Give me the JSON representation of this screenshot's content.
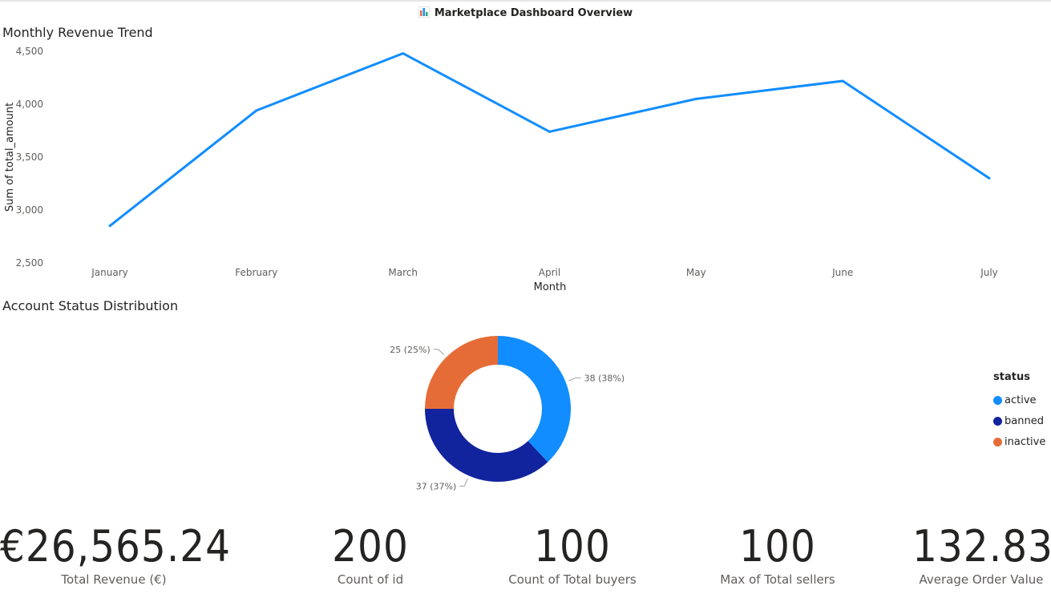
{
  "page": {
    "title": "Marketplace Dashboard Overview",
    "title_icon": "bar-chart-icon"
  },
  "colors": {
    "line": "#118DFF",
    "active": "#118DFF",
    "banned": "#12239E",
    "inactive": "#E66C37"
  },
  "chart_data": [
    {
      "type": "line",
      "title": "Monthly Revenue Trend",
      "xlabel": "Month",
      "ylabel": "Sum of total_amount",
      "categories": [
        "January",
        "February",
        "March",
        "April",
        "May",
        "June",
        "July"
      ],
      "values": [
        2850,
        3940,
        4480,
        3740,
        4050,
        4220,
        3300
      ],
      "ylim": [
        2500,
        4500
      ],
      "yticks": [
        2500,
        3000,
        3500,
        4000,
        4500
      ],
      "ytick_labels": [
        "2,500",
        "3,000",
        "3,500",
        "4,000",
        "4,500"
      ],
      "grid": false,
      "legend": "none"
    },
    {
      "type": "pie",
      "title": "Account Status Distribution",
      "legend_title": "status",
      "legend_position": "right",
      "slices": [
        {
          "label": "active",
          "value": 38,
          "data_label": "38 (38%)"
        },
        {
          "label": "banned",
          "value": 37,
          "data_label": "37 (37%)"
        },
        {
          "label": "inactive",
          "value": 25,
          "data_label": "25 (25%)"
        }
      ]
    }
  ],
  "kpis": [
    {
      "value": "€26,565.24",
      "label": "Total Revenue (€)"
    },
    {
      "value": "200",
      "label": "Count of id"
    },
    {
      "value": "100",
      "label": "Count of Total buyers"
    },
    {
      "value": "100",
      "label": "Max of Total sellers"
    },
    {
      "value": "132.83",
      "label": "Average Order Value"
    }
  ]
}
